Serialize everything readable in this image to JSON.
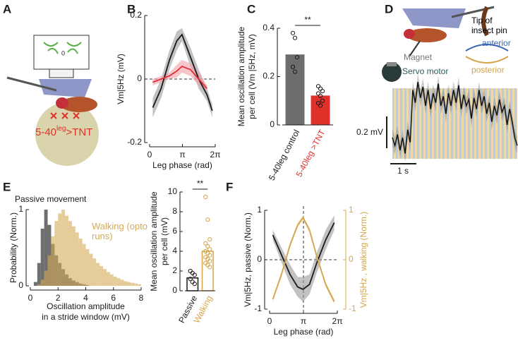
{
  "panel_a": {
    "label": "A",
    "screen_label": "0",
    "genotype": {
      "prefix": "5-40",
      "superscript": "leg",
      "suffix": ">TNT"
    }
  },
  "panel_d": {
    "label": "D",
    "pin_label": "Tip of insect pin",
    "magnet_label": "Magnet",
    "motor_label": "Servo motor",
    "anterior_label": "anterior",
    "posterior_label": "posterior",
    "scale_y_label": "0.2 mV",
    "scale_x_label": "1 s",
    "trace": [
      0,
      -0.05,
      0.02,
      -0.08,
      0.0,
      -0.1,
      0.05,
      -0.03,
      0.3,
      0.22,
      0.35,
      0.25,
      0.32,
      0.2,
      0.3,
      0.18,
      0.28,
      0.22,
      0.34,
      0.2,
      0.26,
      0.15,
      0.28,
      0.2,
      0.3,
      0.22,
      0.33,
      0.18,
      0.27,
      0.2,
      0.24,
      0.12,
      0.25,
      0.18,
      0.3,
      0.2,
      0.26,
      0.15,
      0.22,
      0.1,
      0.2,
      0.14,
      0.24,
      0.16,
      0.2,
      0.08,
      0.18,
      0.1,
      0.0,
      -0.05
    ]
  },
  "chart_data": [
    {
      "panel": "B",
      "type": "line",
      "xlabel": "Leg phase (rad)",
      "ylabel": [
        "Vm|5Hz (mV)"
      ],
      "x": [
        0.3,
        1.1,
        1.9,
        2.6,
        3.1,
        3.9,
        4.7,
        5.5,
        6.0
      ],
      "xlim": [
        0,
        6.2832
      ],
      "ylim": [
        -0.2,
        0.2
      ],
      "xticks": [
        0,
        {
          "value": 3.1416,
          "label": "π"
        },
        {
          "value": 6.2832,
          "label": "2π"
        }
      ],
      "yticks": [
        -0.2,
        0,
        0.2
      ],
      "reference_lines": [
        {
          "axis": "y",
          "value": 0
        }
      ],
      "series": [
        {
          "color": "#1a1a1a",
          "band_color": "#9a9a9a",
          "values": [
            -0.09,
            -0.03,
            0.06,
            0.12,
            0.14,
            0.07,
            0.0,
            -0.05,
            -0.1
          ],
          "error": [
            0.03,
            0.03,
            0.03,
            0.03,
            0.02,
            0.03,
            0.03,
            0.02,
            0.02
          ]
        },
        {
          "color": "#e0303a",
          "band_color": "#f0a0a8",
          "values": [
            -0.01,
            0.0,
            0.01,
            0.025,
            0.04,
            0.03,
            0.0,
            -0.03,
            null
          ],
          "error": [
            0.01,
            0.01,
            0.01,
            0.02,
            0.02,
            0.02,
            0.02,
            0.01,
            null
          ]
        }
      ]
    },
    {
      "panel": "C",
      "type": "bar",
      "bar_style": "filled",
      "ylabel": [
        "Mean oscillation amplitude",
        "per cell (Vm |5Hz, mV)"
      ],
      "categories": [
        "5-40leg control",
        "5-40leg >TNT"
      ],
      "values": [
        0.29,
        0.12
      ],
      "colors": [
        "#6d6d6d",
        "#e0302a"
      ],
      "label_colors": [
        "#1a1a1a",
        "#e0302a"
      ],
      "point_color": "#1a1a1a",
      "points": [
        [
          0.38,
          0.36,
          0.28,
          0.24,
          0.22
        ],
        [
          0.16,
          0.15,
          0.14,
          0.13,
          0.12,
          0.1,
          0.09,
          0.08
        ]
      ],
      "ylim": [
        0,
        0.4
      ],
      "yticks": [
        0,
        0.2,
        0.4
      ],
      "significance": "**"
    },
    {
      "panel": "E",
      "type": "histogram",
      "xlabel": [
        "Oscillation amplitude",
        "in a stride window (mV)"
      ],
      "ylabel": [
        "Probability (Norm.)"
      ],
      "bins": [
        0,
        0.25,
        0.5,
        0.75,
        1,
        1.25,
        1.5,
        1.75,
        2,
        2.25,
        2.5,
        2.75,
        3,
        3.25,
        3.5,
        3.75,
        4,
        4.25,
        4.5,
        4.75,
        5,
        5.25,
        5.5,
        5.75,
        6,
        6.25,
        6.5,
        6.75,
        7,
        7.25,
        7.5,
        7.75,
        8
      ],
      "xlim": [
        0,
        8
      ],
      "ylim": [
        0,
        1
      ],
      "xticks": [
        0,
        2,
        4,
        6,
        8
      ],
      "yticks": [
        0,
        1
      ],
      "series": [
        {
          "name": "Passive movement",
          "color": "#555555",
          "values": [
            0,
            0.05,
            0.3,
            0.75,
            1.0,
            0.8,
            0.55,
            0.4,
            0.3,
            0.22,
            0.15,
            0.1,
            0.07,
            0.05,
            0.03,
            0.02,
            0.01,
            0,
            0,
            0,
            0,
            0,
            0,
            0,
            0,
            0,
            0,
            0,
            0,
            0,
            0,
            0
          ]
        },
        {
          "name": "Walking (opto runs)",
          "color": "#d4aa55",
          "values": [
            0,
            0,
            0.02,
            0.08,
            0.2,
            0.4,
            0.65,
            0.85,
            0.95,
            1.0,
            0.92,
            0.85,
            0.78,
            0.7,
            0.62,
            0.55,
            0.48,
            0.42,
            0.36,
            0.3,
            0.26,
            0.22,
            0.18,
            0.15,
            0.12,
            0.1,
            0.08,
            0.06,
            0.05,
            0.04,
            0.03,
            0.02
          ]
        }
      ]
    },
    {
      "type": "bar",
      "bar_style": "outline",
      "ylabel": [
        "Mean oscillation amplitude",
        "per cell (mV)"
      ],
      "categories": [
        "Passive",
        "Walking"
      ],
      "values": [
        1.3,
        4.0
      ],
      "colors": [
        "#1a1a1a",
        "#d4a44a"
      ],
      "label_colors": [
        "#1a1a1a",
        "#d4a44a"
      ],
      "points": [
        [
          2.0,
          1.8,
          1.6,
          1.2,
          0.9,
          0.7
        ],
        [
          9.5,
          7.2,
          5.2,
          4.8,
          4.5,
          4.2,
          4.0,
          3.8,
          3.6,
          3.4,
          3.2,
          3.0,
          2.8,
          2.6,
          2.4
        ]
      ],
      "ylim": [
        0,
        10
      ],
      "yticks": [
        0,
        2,
        4,
        6,
        8,
        10
      ],
      "significance": "**"
    },
    {
      "panel": "F",
      "type": "line",
      "xlabel": "Leg phase (rad)",
      "ylabel": [
        "Vm|5Hz, passive (Norm.)"
      ],
      "y2label": "Vm|5Hz , walking (Norm.)",
      "y2color": "#d4a44a",
      "x": [
        0.3,
        1.1,
        1.9,
        2.6,
        3.1,
        3.7,
        4.4,
        5.2,
        6.0
      ],
      "xlim": [
        0,
        6.2832
      ],
      "ylim": [
        -1,
        1
      ],
      "y2lim": [
        -1,
        1
      ],
      "xticks": [
        0,
        {
          "value": 3.1416,
          "label": "π"
        },
        {
          "value": 6.2832,
          "label": "2π"
        }
      ],
      "yticks": [
        -1,
        0,
        1
      ],
      "y2ticks": [
        -1,
        0,
        1
      ],
      "reference_lines": [
        {
          "axis": "y",
          "value": 0
        },
        {
          "axis": "x",
          "value": 3.1416
        }
      ],
      "series": [
        {
          "color": "#1a1a1a",
          "band_color": "#9a9a9a",
          "values": [
            0.5,
            0.1,
            -0.3,
            -0.55,
            -0.6,
            -0.5,
            -0.05,
            0.4,
            0.75
          ],
          "error": [
            0.1,
            0.15,
            0.2,
            0.2,
            0.25,
            0.2,
            0.2,
            0.2,
            0.15
          ]
        },
        {
          "axis": "y2",
          "color": "#d4a44a",
          "band_color": "#ecd39c",
          "values": [
            -0.8,
            -0.3,
            0.3,
            0.7,
            0.85,
            0.6,
            0.05,
            -0.5,
            -0.85
          ],
          "error": [
            0.05,
            0.05,
            0.05,
            0.05,
            0.05,
            0.05,
            0.05,
            0.05,
            0.05
          ]
        }
      ]
    }
  ]
}
